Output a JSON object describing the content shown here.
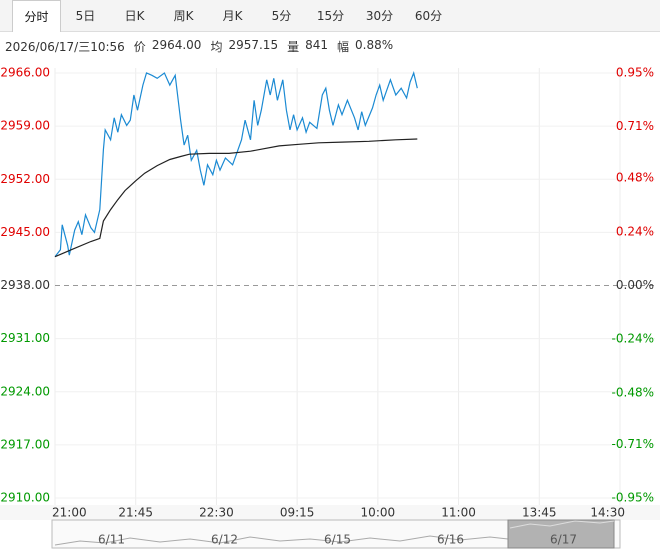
{
  "tabs": [
    "分时",
    "5日",
    "日K",
    "周K",
    "月K",
    "5分",
    "15分",
    "30分",
    "60分"
  ],
  "active_tab": 0,
  "info": {
    "datetime": "2026/06/17/三10:56",
    "price_label": "价",
    "price": "2964.00",
    "avg_label": "均",
    "avg": "2957.15",
    "vol_label": "量",
    "vol": "841",
    "amp_label": "幅",
    "amp": "0.88%"
  },
  "navigator": {
    "dates": [
      "6/11",
      "6/12",
      "6/15",
      "6/16",
      "6/17"
    ]
  },
  "chart_data": {
    "type": "line",
    "x": [
      0,
      3,
      4,
      7,
      8,
      11,
      13,
      15,
      17,
      20,
      22,
      25,
      27,
      28,
      31,
      33,
      35,
      37,
      40,
      42,
      44,
      46,
      49,
      51,
      54,
      57,
      61,
      64,
      67,
      70,
      72,
      74,
      76,
      79,
      81,
      83,
      85,
      88,
      90,
      92,
      95,
      99,
      102,
      104,
      106,
      109,
      111,
      113,
      115,
      118,
      120,
      122,
      124,
      127,
      129,
      131,
      133,
      135,
      138,
      140,
      142,
      146,
      149,
      151,
      153,
      155,
      158,
      160,
      163,
      167,
      169,
      171,
      173,
      177,
      179,
      181,
      183,
      187,
      190,
      193,
      196,
      198,
      200,
      202
    ],
    "series": [
      {
        "color": "#1b8ad3",
        "values": [
          2941.8,
          2942.7,
          2946.0,
          2943.3,
          2942.0,
          2945.3,
          2946.4,
          2944.7,
          2947.3,
          2945.6,
          2945.0,
          2948.0,
          2955.9,
          2958.5,
          2957.2,
          2960.1,
          2958.2,
          2960.5,
          2959.1,
          2959.8,
          2963.1,
          2961.1,
          2964.4,
          2966.0,
          2965.7,
          2965.3,
          2966.0,
          2964.4,
          2965.7,
          2959.8,
          2956.5,
          2957.8,
          2954.5,
          2955.8,
          2953.2,
          2951.2,
          2953.9,
          2952.6,
          2954.5,
          2953.2,
          2954.8,
          2953.9,
          2955.9,
          2957.2,
          2959.8,
          2957.2,
          2962.4,
          2959.1,
          2961.1,
          2965.1,
          2963.1,
          2965.3,
          2962.4,
          2965.1,
          2961.1,
          2958.5,
          2960.5,
          2958.5,
          2960.1,
          2958.2,
          2959.5,
          2958.7,
          2963.1,
          2964.0,
          2961.1,
          2959.1,
          2961.8,
          2960.5,
          2962.4,
          2960.1,
          2958.5,
          2960.9,
          2959.1,
          2961.4,
          2963.1,
          2964.4,
          2962.4,
          2965.1,
          2963.1,
          2964.0,
          2962.7,
          2964.8,
          2966.0,
          2964.0
        ]
      },
      {
        "color": "#222222",
        "x": [
          0,
          10,
          20,
          25,
          27,
          31,
          35,
          39,
          45,
          50,
          57,
          64,
          70,
          75,
          86,
          97,
          109,
          125,
          136,
          147,
          160,
          175,
          190,
          202
        ],
        "values": [
          2941.8,
          2942.8,
          2943.8,
          2944.2,
          2946.5,
          2948.0,
          2949.3,
          2950.5,
          2951.8,
          2952.8,
          2953.8,
          2954.6,
          2955.0,
          2955.3,
          2955.4,
          2955.4,
          2955.7,
          2956.4,
          2956.6,
          2956.8,
          2956.9,
          2957.0,
          2957.2,
          2957.3
        ]
      }
    ],
    "xlim": [
      0,
      315
    ],
    "xticks": [
      {
        "value": 0,
        "label": "21:00"
      },
      {
        "value": 45,
        "label": "21:45"
      },
      {
        "value": 90,
        "label": "22:30"
      },
      {
        "value": 135,
        "label": "09:15"
      },
      {
        "value": 180,
        "label": "10:00"
      },
      {
        "value": 225,
        "label": "11:00"
      },
      {
        "value": 270,
        "label": "13:45"
      },
      {
        "value": 315,
        "label": "14:30"
      }
    ],
    "ylim": [
      2910,
      2966
    ],
    "yticks": [
      {
        "value": 2966,
        "label": "2966.00"
      },
      {
        "value": 2959,
        "label": "2959.00"
      },
      {
        "value": 2952,
        "label": "2952.00"
      },
      {
        "value": 2945,
        "label": "2945.00"
      },
      {
        "value": 2938,
        "label": "2938.00"
      },
      {
        "value": 2931,
        "label": "2931.00"
      },
      {
        "value": 2924,
        "label": "2924.00"
      },
      {
        "value": 2917,
        "label": "2917.00"
      },
      {
        "value": 2910,
        "label": "2910.00"
      }
    ],
    "y2lim": [
      -0.95,
      0.95
    ],
    "y2ticks": [
      {
        "value": 0.95,
        "label": "0.95%"
      },
      {
        "value": 0.71,
        "label": "0.71%"
      },
      {
        "value": 0.48,
        "label": "0.48%"
      },
      {
        "value": 0.24,
        "label": "0.24%"
      },
      {
        "value": 0,
        "label": "0.00%"
      },
      {
        "value": -0.24,
        "label": "-0.24%"
      },
      {
        "value": -0.48,
        "label": "-0.48%"
      },
      {
        "value": -0.71,
        "label": "-0.71%"
      },
      {
        "value": -0.95,
        "label": "-0.95%"
      }
    ],
    "tick_colors": {
      "up": "#e00000",
      "flat": "#333333",
      "down": "#009900"
    },
    "grid": true
  }
}
